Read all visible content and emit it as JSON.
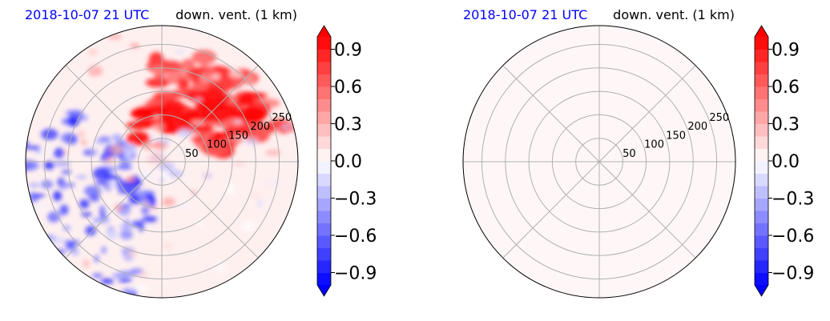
{
  "colors": {
    "accent_title": "#0000ff",
    "positive_max": "#ff0000",
    "negative_max": "#0000ff",
    "neutral": "#ffffff",
    "grid": "#b0b0b0",
    "panel2_fill": "#fff1f1"
  },
  "chart_data": [
    {
      "type": "heatmap",
      "projection": "polar",
      "title_left": "2018-10-07 21 UTC",
      "title_right": "down. vent. (1 km)",
      "radial_ticks": [
        50,
        100,
        150,
        200,
        250
      ],
      "rlim": [
        0,
        290
      ],
      "angular_grid_deg": [
        0,
        45,
        90,
        135,
        180,
        225,
        270,
        315
      ],
      "colorbar": {
        "ticks": [
          "0.9",
          "0.6",
          "0.3",
          "0.0",
          "−0.3",
          "−0.6",
          "−0.9"
        ],
        "tick_values": [
          0.9,
          0.6,
          0.3,
          0.0,
          -0.3,
          -0.6,
          -0.9
        ],
        "range": [
          -1.0,
          1.0
        ],
        "extend": "both",
        "levels": 20
      },
      "field_summary": "strong positive band north-east, negative patches west and south-west"
    },
    {
      "type": "heatmap",
      "projection": "polar",
      "title_left": "2018-10-07 21 UTC",
      "title_right": "down. vent. (1 km)",
      "radial_ticks": [
        50,
        100,
        150,
        200,
        250
      ],
      "rlim": [
        0,
        290
      ],
      "angular_grid_deg": [
        0,
        45,
        90,
        135,
        180,
        225,
        270,
        315
      ],
      "colorbar": {
        "ticks": [
          "0.9",
          "0.6",
          "0.3",
          "0.0",
          "−0.3",
          "−0.6",
          "−0.9"
        ],
        "tick_values": [
          0.9,
          0.6,
          0.3,
          0.0,
          -0.3,
          -0.6,
          -0.9
        ],
        "range": [
          -1.0,
          1.0
        ],
        "extend": "both",
        "levels": 20
      },
      "uniform_value": 0.03
    }
  ]
}
